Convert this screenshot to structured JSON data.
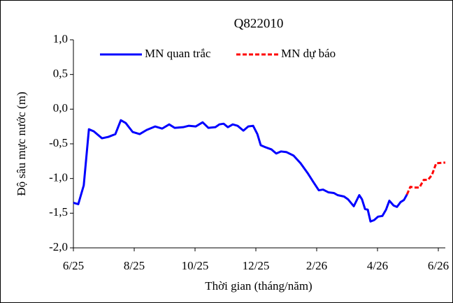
{
  "chart_data": {
    "type": "line",
    "title": "Q822010",
    "x_label": "Thời gian (tháng/năm)",
    "y_label": "Độ sâu mực nước (m)",
    "xlim": [
      0,
      12.23
    ],
    "ylim": [
      -2,
      1
    ],
    "xticks": [
      {
        "value": 0,
        "label": "6/25"
      },
      {
        "value": 2,
        "label": "8/25"
      },
      {
        "value": 4,
        "label": "10/25"
      },
      {
        "value": 6,
        "label": "12/25"
      },
      {
        "value": 8,
        "label": "2/26"
      },
      {
        "value": 10,
        "label": "4/26"
      },
      {
        "value": 12,
        "label": "6/26"
      }
    ],
    "yticks": [
      {
        "value": 1,
        "label": "1,0"
      },
      {
        "value": 0.5,
        "label": "0,5"
      },
      {
        "value": 0,
        "label": "0,0"
      },
      {
        "value": -0.5,
        "label": "-0,5"
      },
      {
        "value": -1,
        "label": "-1,0"
      },
      {
        "value": -1.5,
        "label": "-1,5"
      },
      {
        "value": -2,
        "label": "-2,0"
      }
    ],
    "grid": false,
    "legend": "top",
    "series": [
      {
        "name": "MN quan trắc",
        "color": "#0000ff",
        "dashed": false,
        "x": [
          0,
          0.16,
          0.34,
          0.51,
          0.67,
          0.94,
          1.15,
          1.38,
          1.56,
          1.72,
          1.95,
          2.18,
          2.41,
          2.69,
          2.92,
          3.15,
          3.33,
          3.61,
          3.79,
          4.02,
          4.25,
          4.44,
          4.67,
          4.8,
          4.94,
          5.08,
          5.24,
          5.4,
          5.59,
          5.75,
          5.91,
          6.05,
          6.16,
          6.32,
          6.51,
          6.67,
          6.83,
          7.01,
          7.24,
          7.47,
          7.7,
          7.89,
          8.07,
          8.21,
          8.39,
          8.57,
          8.69,
          8.9,
          9.03,
          9.22,
          9.4,
          9.49,
          9.59,
          9.68,
          9.77,
          9.89,
          10.02,
          10.16,
          10.28,
          10.39,
          10.53,
          10.64,
          10.76,
          10.87,
          10.97
        ],
        "values": [
          -1.35,
          -1.37,
          -1.1,
          -0.29,
          -0.32,
          -0.42,
          -0.4,
          -0.36,
          -0.16,
          -0.2,
          -0.33,
          -0.36,
          -0.3,
          -0.25,
          -0.28,
          -0.22,
          -0.27,
          -0.26,
          -0.24,
          -0.25,
          -0.19,
          -0.27,
          -0.26,
          -0.22,
          -0.21,
          -0.26,
          -0.22,
          -0.24,
          -0.31,
          -0.25,
          -0.24,
          -0.36,
          -0.52,
          -0.55,
          -0.58,
          -0.64,
          -0.61,
          -0.62,
          -0.67,
          -0.78,
          -0.92,
          -1.05,
          -1.17,
          -1.16,
          -1.2,
          -1.21,
          -1.24,
          -1.26,
          -1.3,
          -1.4,
          -1.24,
          -1.3,
          -1.44,
          -1.45,
          -1.62,
          -1.6,
          -1.55,
          -1.54,
          -1.45,
          -1.32,
          -1.39,
          -1.41,
          -1.34,
          -1.31,
          -1.23
        ]
      },
      {
        "name": "MN dự báo",
        "color": "#ff0000",
        "dashed": true,
        "x": [
          10.97,
          11.08,
          11.2,
          11.38,
          11.52,
          11.66,
          11.79,
          11.93,
          12.23
        ],
        "values": [
          -1.23,
          -1.12,
          -1.13,
          -1.13,
          -1.02,
          -1.02,
          -0.95,
          -0.78,
          -0.77
        ]
      }
    ]
  }
}
